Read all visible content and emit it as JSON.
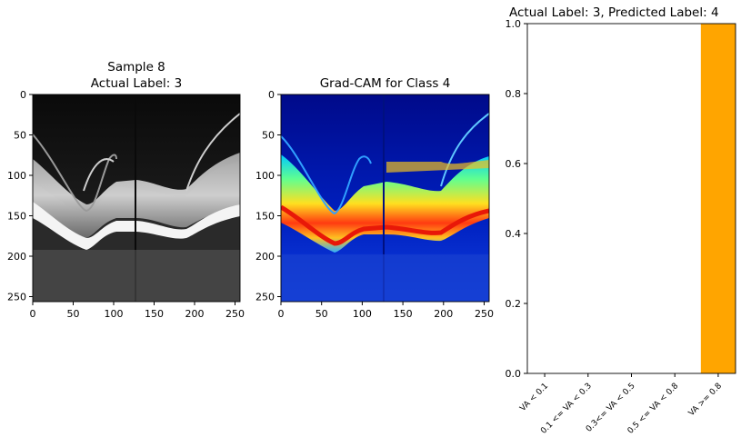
{
  "panel1": {
    "title_line1": "Sample 8",
    "title_line2": "Actual Label: 3",
    "image": "grayscale OCT retina scan"
  },
  "panel2": {
    "title": "Grad-CAM for Class 4",
    "image": "jet colormap Grad-CAM overlay of OCT scan"
  },
  "chart_data": [
    {
      "type": "heatmap",
      "title": "Sample 8\nActual Label: 3",
      "x_ticks": [
        "0",
        "50",
        "100",
        "150",
        "200",
        "250"
      ],
      "y_ticks": [
        "0",
        "50",
        "100",
        "150",
        "200",
        "250"
      ],
      "xlim": [
        0,
        256
      ],
      "ylim": [
        256,
        0
      ],
      "colormap": "gray"
    },
    {
      "type": "heatmap",
      "title": "Grad-CAM for Class 4",
      "x_ticks": [
        "0",
        "50",
        "100",
        "150",
        "200",
        "250"
      ],
      "y_ticks": [
        "0",
        "50",
        "100",
        "150",
        "200",
        "250"
      ],
      "xlim": [
        0,
        256
      ],
      "ylim": [
        256,
        0
      ],
      "colormap": "jet"
    },
    {
      "type": "bar",
      "title": "Actual Label: 3, Predicted Label: 4",
      "categories": [
        "VA < 0.1",
        "0.1 <= VA < 0.3",
        "0.3<= VA < 0.5",
        "0.5 <= VA < 0.8",
        "VA >= 0.8"
      ],
      "values": [
        0.0,
        0.0,
        0.0,
        0.0,
        1.0
      ],
      "ylim": [
        0,
        1.0
      ],
      "yticks": [
        "0.0",
        "0.2",
        "0.4",
        "0.6",
        "0.8",
        "1.0"
      ],
      "bar_color": "#ffa500",
      "xlabel": "",
      "ylabel": ""
    }
  ]
}
